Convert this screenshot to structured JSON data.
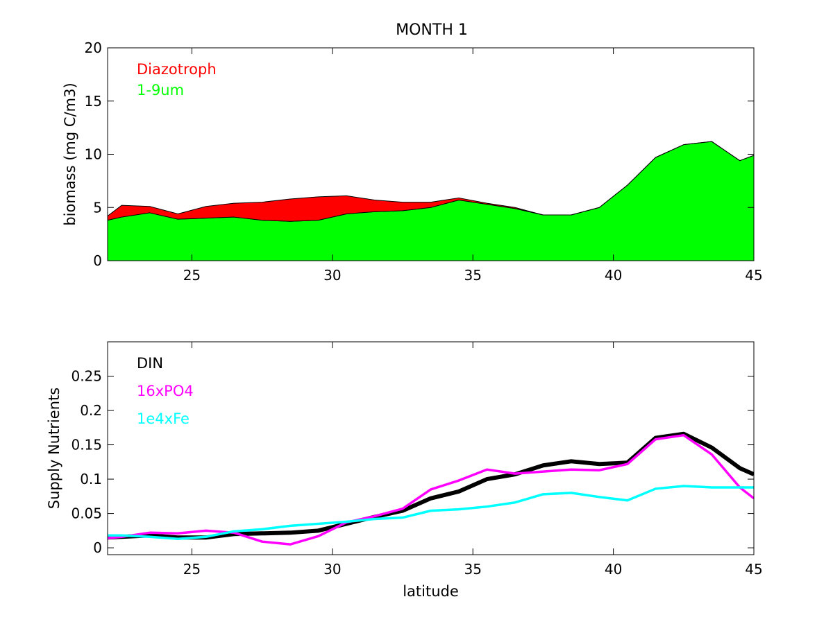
{
  "title": "MONTH 1",
  "chart_data": [
    {
      "type": "area",
      "title": "MONTH 1",
      "xlabel": "",
      "ylabel": "biomass (mg C/m3)",
      "xlim": [
        22,
        45
      ],
      "ylim": [
        0,
        20
      ],
      "xticks": [
        25,
        30,
        35,
        40,
        45
      ],
      "yticks": [
        0,
        5,
        10,
        15,
        20
      ],
      "stacked": true,
      "grid": false,
      "legend_position": "top-left",
      "x": [
        22,
        22.5,
        23.5,
        24.5,
        25.5,
        26.5,
        27.5,
        28.5,
        29.5,
        30.5,
        31.5,
        32.5,
        33.5,
        34.5,
        35.5,
        36.5,
        37.5,
        38.5,
        39.5,
        40.5,
        41.5,
        42.5,
        43.5,
        44.5,
        45
      ],
      "series": [
        {
          "name": "1-9um",
          "color": "#00ff00",
          "values": [
            3.8,
            4.1,
            4.5,
            3.9,
            4.0,
            4.1,
            3.8,
            3.7,
            3.8,
            4.4,
            4.6,
            4.7,
            5.0,
            5.7,
            5.3,
            4.9,
            4.3,
            4.3,
            5.0,
            7.1,
            9.7,
            10.9,
            11.2,
            9.4,
            9.9
          ]
        },
        {
          "name": "Diazotroph",
          "color": "#ff0000",
          "values": [
            0.4,
            1.1,
            0.6,
            0.5,
            1.1,
            1.3,
            1.7,
            2.1,
            2.2,
            1.7,
            1.1,
            0.8,
            0.5,
            0.2,
            0.1,
            0.1,
            0.0,
            0.0,
            0.0,
            0.0,
            0.0,
            0.0,
            0.0,
            0.0,
            0.0
          ]
        }
      ]
    },
    {
      "type": "line",
      "xlabel": "latitude",
      "ylabel": "Supply Nutrients",
      "xlim": [
        22,
        45
      ],
      "ylim": [
        -0.01,
        0.3
      ],
      "xticks": [
        25,
        30,
        35,
        40,
        45
      ],
      "yticks": [
        0,
        0.05,
        0.1,
        0.15,
        0.2,
        0.25
      ],
      "ytick_labels": [
        "0",
        "0.05",
        "0.1",
        "0.15",
        "0.2",
        "0.25"
      ],
      "grid": false,
      "legend_position": "top-left",
      "x": [
        22,
        22.5,
        23.5,
        24.5,
        25.5,
        26.5,
        27.5,
        28.5,
        29.5,
        30.5,
        31.5,
        32.5,
        33.5,
        34.5,
        35.5,
        36.5,
        37.5,
        38.5,
        39.5,
        40.5,
        41.5,
        42.5,
        43.5,
        44.5,
        45
      ],
      "series": [
        {
          "name": "DIN",
          "color": "#000000",
          "width": 6,
          "values": [
            0.015,
            0.016,
            0.018,
            0.015,
            0.015,
            0.02,
            0.021,
            0.022,
            0.025,
            0.035,
            0.045,
            0.054,
            0.072,
            0.082,
            0.1,
            0.107,
            0.12,
            0.126,
            0.122,
            0.124,
            0.16,
            0.166,
            0.146,
            0.116,
            0.107
          ]
        },
        {
          "name": "16xPO4",
          "color": "#ff00ff",
          "width": 3.5,
          "values": [
            0.014,
            0.016,
            0.022,
            0.021,
            0.025,
            0.022,
            0.009,
            0.005,
            0.017,
            0.037,
            0.046,
            0.057,
            0.085,
            0.098,
            0.114,
            0.108,
            0.111,
            0.114,
            0.113,
            0.122,
            0.158,
            0.164,
            0.136,
            0.088,
            0.072
          ]
        },
        {
          "name": "1e4xFe",
          "color": "#00ffff",
          "width": 3.5,
          "values": [
            0.018,
            0.018,
            0.016,
            0.013,
            0.016,
            0.024,
            0.027,
            0.032,
            0.035,
            0.038,
            0.042,
            0.044,
            0.054,
            0.056,
            0.06,
            0.066,
            0.078,
            0.08,
            0.074,
            0.069,
            0.086,
            0.09,
            0.088,
            0.088,
            0.088
          ]
        }
      ]
    }
  ]
}
